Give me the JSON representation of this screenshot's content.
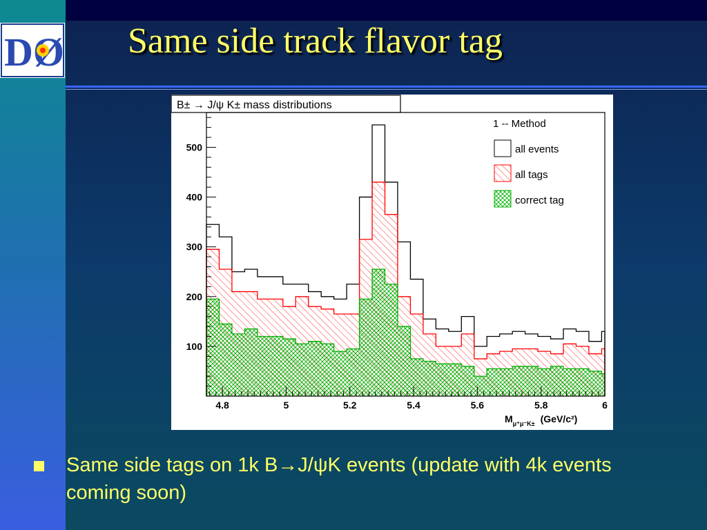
{
  "slide": {
    "title": "Same side track flavor tag",
    "logo_text": "DØ",
    "bullet": {
      "part1": "Same side tags on 1k B",
      "arrow": "→",
      "part2": "J/",
      "psi": "ψ",
      "part3": "K events (update with 4k events coming soon)"
    },
    "colors": {
      "background": "#0b2d5a",
      "sidebar": "#2f64d0",
      "title_text": "#ffff66",
      "rule": "#3a66ff"
    }
  },
  "chart_data": {
    "type": "histogram",
    "title": "B± → J/ψ K± mass distributions",
    "xlabel": "M_{μ+μ−K±} (GeV/c²)",
    "xlabel_main": "M",
    "xlabel_sub": "μ⁺μ⁻K±",
    "xlabel_unit": "(GeV/c²)",
    "ylabel": "",
    "xlim": [
      4.75,
      6.0
    ],
    "ylim": [
      0,
      570
    ],
    "bin_width": 0.04,
    "x_ticks": [
      "4.8",
      "5",
      "5.2",
      "5.4",
      "5.6",
      "5.8",
      "6"
    ],
    "y_ticks": [
      "100",
      "200",
      "300",
      "400",
      "500"
    ],
    "legend": {
      "header": "1 -- Method",
      "placement": "top-right",
      "entries": [
        "all events",
        "all tags",
        "correct tag"
      ]
    },
    "series": [
      {
        "name": "all events",
        "color": "#000000",
        "fill": "none",
        "values": [
          345,
          320,
          250,
          255,
          240,
          240,
          225,
          225,
          210,
          200,
          195,
          225,
          400,
          545,
          430,
          310,
          235,
          155,
          135,
          130,
          160,
          100,
          120,
          125,
          130,
          125,
          120,
          115,
          135,
          130,
          110,
          130
        ]
      },
      {
        "name": "all tags",
        "color": "#ff0000",
        "fill": "hatch",
        "values": [
          295,
          255,
          210,
          210,
          195,
          195,
          180,
          200,
          180,
          175,
          165,
          165,
          315,
          430,
          365,
          200,
          165,
          125,
          100,
          100,
          125,
          75,
          85,
          90,
          95,
          95,
          90,
          85,
          105,
          100,
          85,
          95
        ]
      },
      {
        "name": "correct tag",
        "color": "#00b000",
        "fill": "crosshatch",
        "values": [
          195,
          145,
          125,
          135,
          120,
          120,
          115,
          105,
          110,
          105,
          90,
          95,
          195,
          255,
          225,
          140,
          75,
          70,
          65,
          65,
          60,
          40,
          55,
          55,
          60,
          60,
          55,
          60,
          55,
          55,
          50,
          45
        ]
      }
    ],
    "grid": false
  }
}
